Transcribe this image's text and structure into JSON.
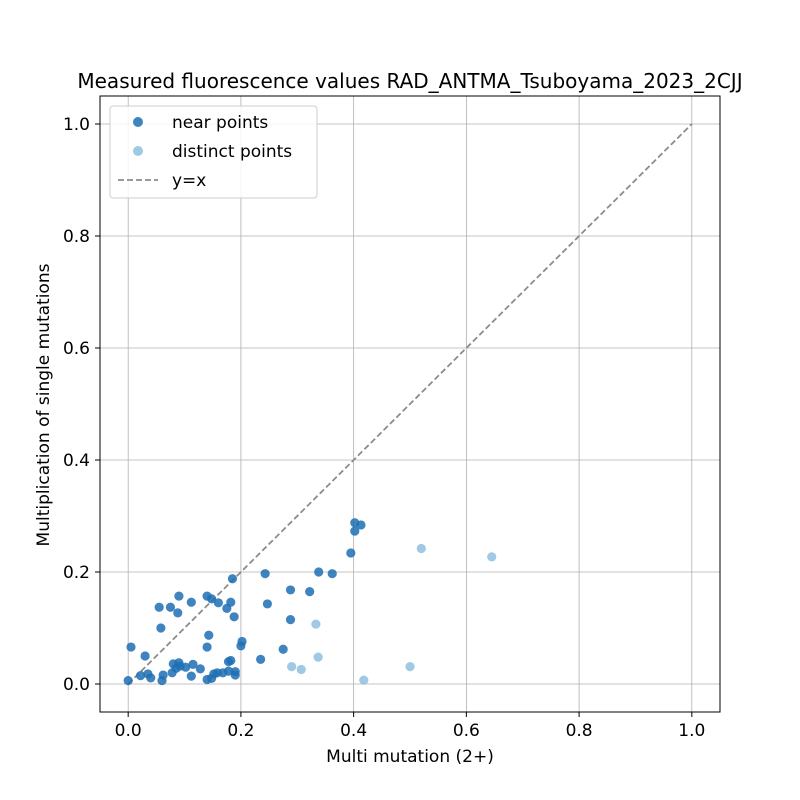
{
  "chart_data": {
    "type": "scatter",
    "title": "Measured fluorescence values RAD_ANTMA_Tsuboyama_2023_2CJJ",
    "xlabel": "Multi mutation (2+)",
    "ylabel": "Multiplication of single mutations",
    "xlim": [
      -0.05,
      1.05
    ],
    "ylim": [
      -0.05,
      1.05
    ],
    "xticks": [
      0.0,
      0.2,
      0.4,
      0.6,
      0.8,
      1.0
    ],
    "yticks": [
      0.0,
      0.2,
      0.4,
      0.6,
      0.8,
      1.0
    ],
    "xtick_labels": [
      "0.0",
      "0.2",
      "0.4",
      "0.6",
      "0.8",
      "1.0"
    ],
    "ytick_labels": [
      "0.0",
      "0.2",
      "0.4",
      "0.6",
      "0.8",
      "1.0"
    ],
    "grid": true,
    "legend_position": "top-left",
    "series": [
      {
        "name": "near points",
        "color": "#1f6fb4",
        "points": [
          [
            0.0,
            0.006
          ],
          [
            0.005,
            0.066
          ],
          [
            0.022,
            0.015
          ],
          [
            0.03,
            0.05
          ],
          [
            0.035,
            0.018
          ],
          [
            0.04,
            0.011
          ],
          [
            0.055,
            0.137
          ],
          [
            0.058,
            0.1
          ],
          [
            0.06,
            0.006
          ],
          [
            0.062,
            0.016
          ],
          [
            0.075,
            0.137
          ],
          [
            0.078,
            0.02
          ],
          [
            0.08,
            0.036
          ],
          [
            0.085,
            0.028
          ],
          [
            0.088,
            0.127
          ],
          [
            0.09,
            0.157
          ],
          [
            0.09,
            0.038
          ],
          [
            0.092,
            0.032
          ],
          [
            0.102,
            0.03
          ],
          [
            0.112,
            0.146
          ],
          [
            0.112,
            0.014
          ],
          [
            0.115,
            0.035
          ],
          [
            0.128,
            0.027
          ],
          [
            0.14,
            0.008
          ],
          [
            0.14,
            0.066
          ],
          [
            0.14,
            0.157
          ],
          [
            0.143,
            0.087
          ],
          [
            0.148,
            0.152
          ],
          [
            0.148,
            0.01
          ],
          [
            0.152,
            0.018
          ],
          [
            0.158,
            0.02
          ],
          [
            0.16,
            0.145
          ],
          [
            0.168,
            0.02
          ],
          [
            0.175,
            0.135
          ],
          [
            0.178,
            0.023
          ],
          [
            0.178,
            0.04
          ],
          [
            0.182,
            0.146
          ],
          [
            0.182,
            0.042
          ],
          [
            0.185,
            0.188
          ],
          [
            0.188,
            0.12
          ],
          [
            0.19,
            0.016
          ],
          [
            0.19,
            0.022
          ],
          [
            0.2,
            0.068
          ],
          [
            0.202,
            0.076
          ],
          [
            0.235,
            0.044
          ],
          [
            0.243,
            0.197
          ],
          [
            0.247,
            0.143
          ],
          [
            0.275,
            0.062
          ],
          [
            0.288,
            0.168
          ],
          [
            0.288,
            0.115
          ],
          [
            0.322,
            0.165
          ],
          [
            0.338,
            0.2
          ],
          [
            0.362,
            0.197
          ],
          [
            0.395,
            0.234
          ],
          [
            0.402,
            0.288
          ],
          [
            0.402,
            0.273
          ],
          [
            0.413,
            0.284
          ]
        ]
      },
      {
        "name": "distinct points",
        "color": "#8ec0df",
        "points": [
          [
            0.29,
            0.031
          ],
          [
            0.307,
            0.026
          ],
          [
            0.333,
            0.107
          ],
          [
            0.337,
            0.048
          ],
          [
            0.418,
            0.007
          ],
          [
            0.5,
            0.031
          ],
          [
            0.52,
            0.242
          ],
          [
            0.645,
            0.227
          ]
        ]
      }
    ],
    "reference_line": {
      "name": "y=x",
      "color": "#8c8c8c",
      "style": "dashed",
      "from": [
        0.0,
        0.0
      ],
      "to": [
        1.0,
        1.0
      ]
    }
  }
}
